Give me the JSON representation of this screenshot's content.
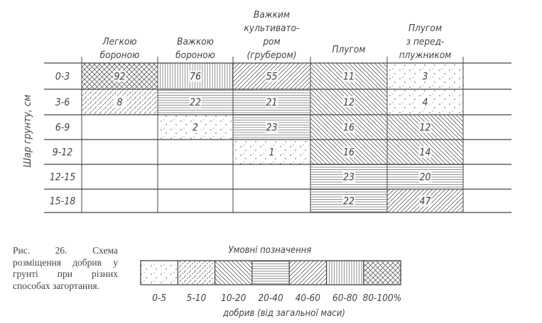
{
  "columns": [
    {
      "label": [
        "Легкою",
        "бороною"
      ]
    },
    {
      "label": [
        "Важкою",
        "бороною"
      ]
    },
    {
      "label": [
        "Важким",
        "культивато-",
        "ром",
        "(грубером)"
      ]
    },
    {
      "label": [
        "Плугом"
      ]
    },
    {
      "label": [
        "Плугом",
        "з перед-",
        "плужником"
      ]
    }
  ],
  "y_axis_label": "Шар грунту, см",
  "rows": [
    {
      "depth": "0-3",
      "values": [
        92,
        76,
        55,
        11,
        3
      ]
    },
    {
      "depth": "3-6",
      "values": [
        8,
        22,
        21,
        12,
        4
      ]
    },
    {
      "depth": "6-9",
      "values": [
        null,
        2,
        23,
        16,
        12
      ]
    },
    {
      "depth": "9-12",
      "values": [
        null,
        null,
        1,
        16,
        14
      ]
    },
    {
      "depth": "12-15",
      "values": [
        null,
        null,
        null,
        23,
        20
      ]
    },
    {
      "depth": "15-18",
      "values": [
        null,
        null,
        null,
        22,
        47
      ]
    }
  ],
  "legend": {
    "title": "Умовні позначення",
    "items": [
      {
        "label": "0-5",
        "min": 0,
        "max": 5,
        "pattern": "dots"
      },
      {
        "label": "5-10",
        "min": 5,
        "max": 10,
        "pattern": "dashed-forward-hatch"
      },
      {
        "label": "10-20",
        "min": 10,
        "max": 20,
        "pattern": "backward-hatch"
      },
      {
        "label": "20-40",
        "min": 20,
        "max": 40,
        "pattern": "horizontal-lines"
      },
      {
        "label": "40-60",
        "min": 40,
        "max": 60,
        "pattern": "forward-hatch"
      },
      {
        "label": "60-80",
        "min": 60,
        "max": 80,
        "pattern": "vertical-lines"
      },
      {
        "label": "80-100%",
        "min": 80,
        "max": 100,
        "pattern": "cross-hatch"
      }
    ],
    "subtitle": "добрив (від загальної маси)"
  },
  "caption": "Рис. 26. Схема розміщення добрив у грунті при різних способах загортання.",
  "ink_color": "#444444"
}
